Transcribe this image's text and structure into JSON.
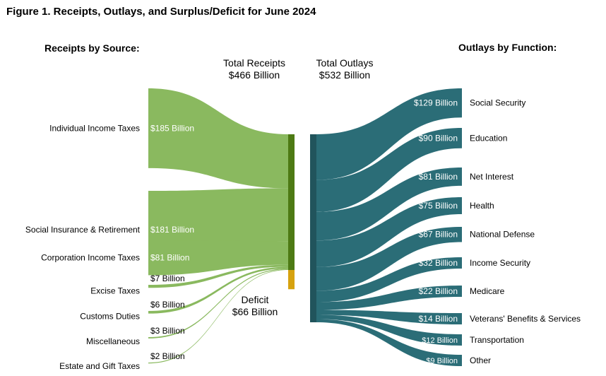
{
  "title": "Figure 1. Receipts, Outlays, and Surplus/Deficit for June 2024",
  "headings": {
    "receipts": "Receipts by Source:",
    "outlays": "Outlays by Function:",
    "total_receipts_line1": "Total Receipts",
    "total_receipts_line2": "$466 Billion",
    "total_outlays_line1": "Total Outlays",
    "total_outlays_line2": "$532 Billion",
    "deficit_line1": "Deficit",
    "deficit_line2": "$66 Billion"
  },
  "colors": {
    "receipts": "#8ab95f",
    "receipts_bar": "#4d7a14",
    "deficit": "#d6a20f",
    "outlays": "#2b6d77",
    "outlays_bar": "#21545c"
  },
  "chart_data": {
    "type": "sankey",
    "units": "Billion dollars",
    "total_receipts": 466,
    "total_outlays": 532,
    "deficit": 66,
    "receipts": [
      {
        "name": "Individual Income Taxes",
        "value": 185,
        "label": "$185 Billion"
      },
      {
        "name": "Social Insurance & Retirement",
        "value": 181,
        "label": "$181 Billion"
      },
      {
        "name": "Corporation Income Taxes",
        "value": 81,
        "label": "$81 Billion"
      },
      {
        "name": "Excise Taxes",
        "value": 7,
        "label": "$7 Billion"
      },
      {
        "name": "Customs Duties",
        "value": 6,
        "label": "$6 Billion"
      },
      {
        "name": "Miscellaneous",
        "value": 3,
        "label": "$3 Billion"
      },
      {
        "name": "Estate and Gift Taxes",
        "value": 2,
        "label": "$2 Billion"
      }
    ],
    "outlays": [
      {
        "name": "Social Security",
        "value": 129,
        "label": "$129 Billion"
      },
      {
        "name": "Education",
        "value": 90,
        "label": "$90 Billion"
      },
      {
        "name": "Net Interest",
        "value": 81,
        "label": "$81 Billion"
      },
      {
        "name": "Health",
        "value": 75,
        "label": "$75 Billion"
      },
      {
        "name": "National Defense",
        "value": 67,
        "label": "$67 Billion"
      },
      {
        "name": "Income Security",
        "value": 32,
        "label": "$32 Billion"
      },
      {
        "name": "Medicare",
        "value": 22,
        "label": "$22 Billion"
      },
      {
        "name": "Veterans' Benefits & Services",
        "value": 14,
        "label": "$14 Billion"
      },
      {
        "name": "Transportation",
        "value": 12,
        "label": "$12 Billion"
      },
      {
        "name": "Other",
        "value": 9,
        "label": "$9 Billion"
      }
    ]
  }
}
